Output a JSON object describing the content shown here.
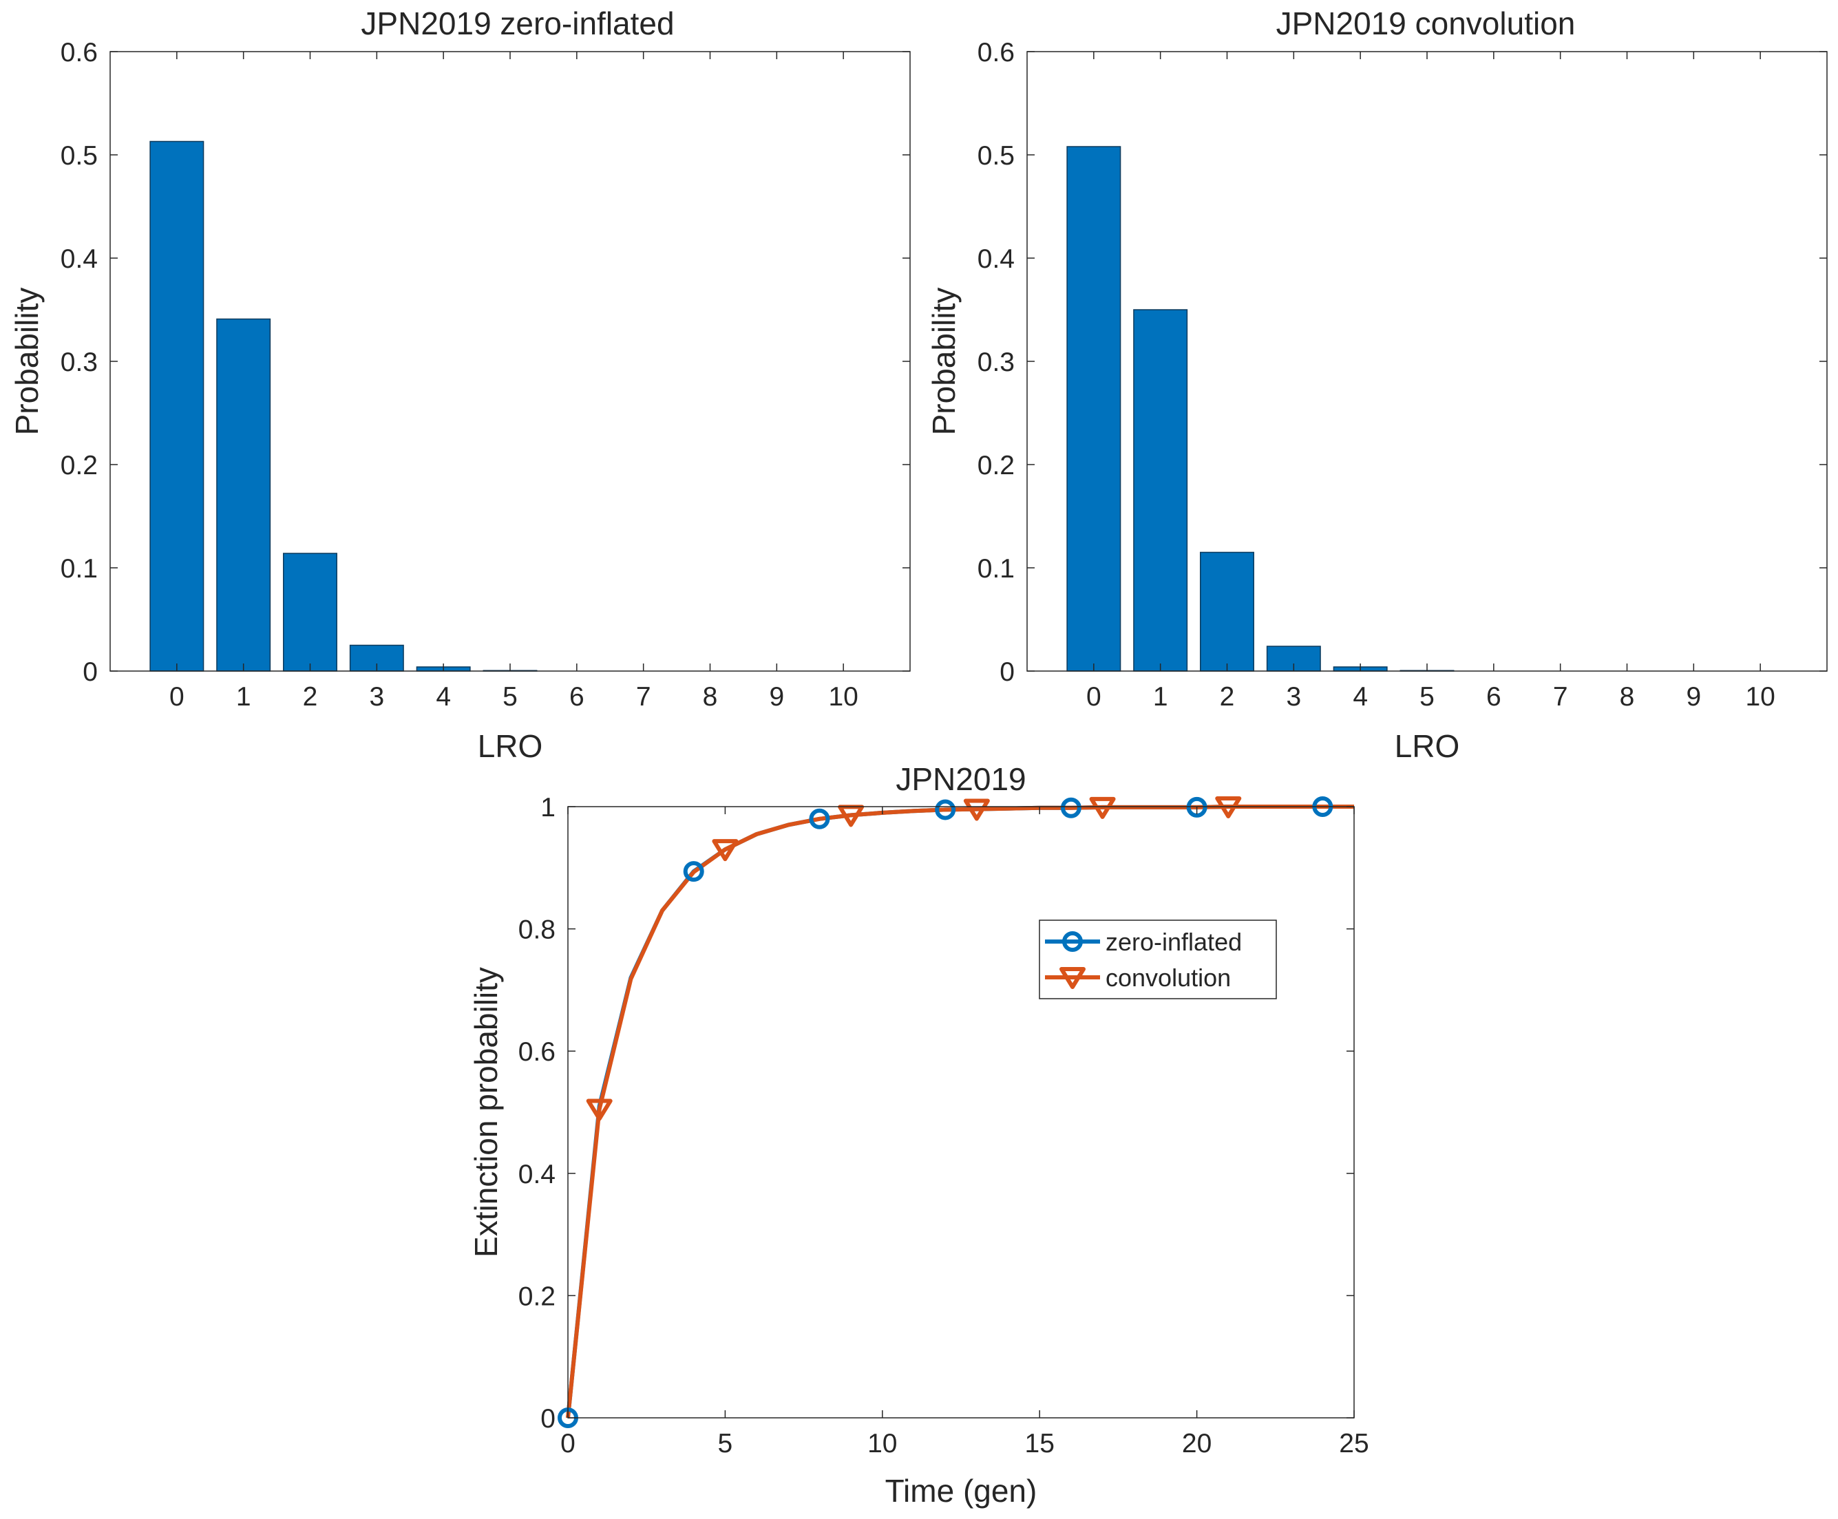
{
  "colors": {
    "bar_fill": "#0072BD",
    "bar_edge": "#0D3A5C",
    "series_blue": "#0072BD",
    "series_orange": "#D95319",
    "axis": "#262626"
  },
  "chart_data": [
    {
      "type": "bar",
      "title": "JPN2019 zero-inflated",
      "xlabel": "LRO",
      "ylabel": "Probability",
      "categories": [
        "0",
        "1",
        "2",
        "3",
        "4",
        "5",
        "6",
        "7",
        "8",
        "9",
        "10"
      ],
      "values": [
        0.513,
        0.341,
        0.114,
        0.025,
        0.004,
        0.0005,
        0.0001,
        0,
        0,
        0,
        0
      ],
      "ylim": [
        0,
        0.6
      ],
      "yticks": [
        0,
        0.1,
        0.2,
        0.3,
        0.4,
        0.5,
        0.6
      ],
      "ytick_labels": [
        "0",
        "0.1",
        "0.2",
        "0.3",
        "0.4",
        "0.5",
        "0.6"
      ],
      "grid": false
    },
    {
      "type": "bar",
      "title": "JPN2019 convolution",
      "xlabel": "LRO",
      "ylabel": "Probability",
      "categories": [
        "0",
        "1",
        "2",
        "3",
        "4",
        "5",
        "6",
        "7",
        "8",
        "9",
        "10"
      ],
      "values": [
        0.508,
        0.35,
        0.115,
        0.024,
        0.004,
        0.0005,
        0.0001,
        0,
        0,
        0,
        0
      ],
      "ylim": [
        0,
        0.6
      ],
      "yticks": [
        0,
        0.1,
        0.2,
        0.3,
        0.4,
        0.5,
        0.6
      ],
      "ytick_labels": [
        "0",
        "0.1",
        "0.2",
        "0.3",
        "0.4",
        "0.5",
        "0.6"
      ],
      "grid": false
    },
    {
      "type": "line",
      "title": "JPN2019",
      "xlabel": "Time (gen)",
      "ylabel": "Extinction probability",
      "xlim": [
        0,
        25
      ],
      "ylim": [
        0,
        1
      ],
      "xticks": [
        0,
        5,
        10,
        15,
        20,
        25
      ],
      "xtick_labels": [
        "0",
        "5",
        "10",
        "15",
        "20",
        "25"
      ],
      "yticks": [
        0,
        0.2,
        0.4,
        0.6,
        0.8,
        1
      ],
      "ytick_labels": [
        "0",
        "0.2",
        "0.4",
        "0.6",
        "0.8",
        "1"
      ],
      "x": [
        0,
        1,
        2,
        3,
        4,
        5,
        6,
        7,
        8,
        9,
        10,
        11,
        12,
        13,
        14,
        15,
        16,
        17,
        18,
        19,
        20,
        21,
        22,
        23,
        24,
        25
      ],
      "series": [
        {
          "name": "zero-inflated",
          "marker": "circle",
          "marker_x": [
            0,
            4,
            8,
            12,
            16,
            20,
            24
          ],
          "values": [
            0,
            0.51,
            0.72,
            0.83,
            0.894,
            0.93,
            0.955,
            0.97,
            0.98,
            0.986,
            0.99,
            0.993,
            0.995,
            0.996,
            0.997,
            0.998,
            0.998,
            0.999,
            0.999,
            0.999,
            0.999,
            1.0,
            1.0,
            1.0,
            1.0,
            1.0
          ]
        },
        {
          "name": "convolution",
          "marker": "triangle-down",
          "marker_x": [
            1,
            5,
            9,
            13,
            17,
            21
          ],
          "values": [
            0,
            0.505,
            0.718,
            0.83,
            0.893,
            0.93,
            0.955,
            0.97,
            0.98,
            0.986,
            0.99,
            0.993,
            0.995,
            0.996,
            0.997,
            0.998,
            0.998,
            0.999,
            0.999,
            0.999,
            0.999,
            1.0,
            1.0,
            1.0,
            1.0,
            1.0
          ]
        }
      ],
      "legend": {
        "position": "center-right",
        "entries": [
          "zero-inflated",
          "convolution"
        ]
      },
      "grid": false
    }
  ]
}
